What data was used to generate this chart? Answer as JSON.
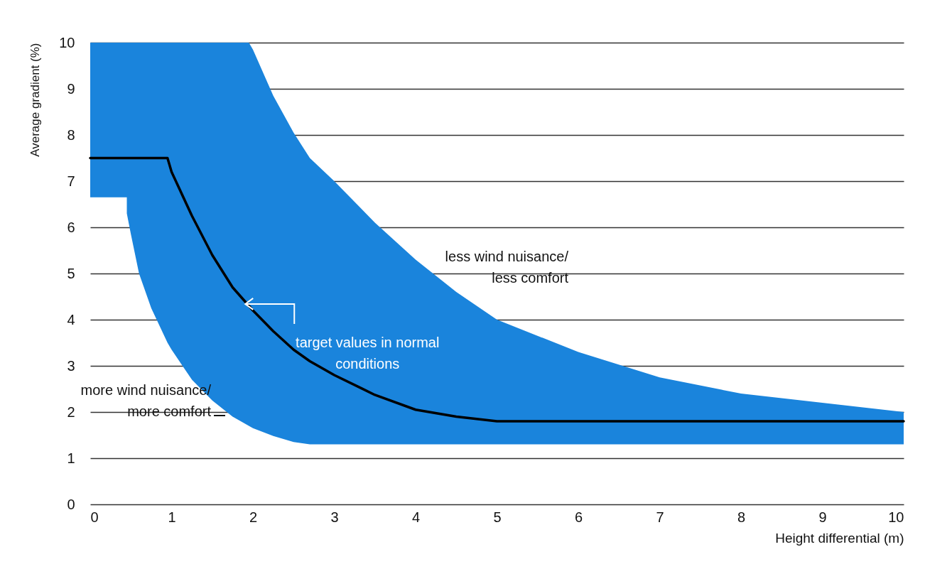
{
  "chart_data": {
    "type": "line",
    "xlabel": "Height differential (m)",
    "ylabel": "Average gradient (%)",
    "x": [
      0,
      0.45,
      0.45,
      0.5,
      0.6,
      0.75,
      0.95,
      1,
      1.25,
      1.5,
      1.75,
      1.95,
      2,
      2.25,
      2.5,
      2.7,
      3,
      3.5,
      4,
      4.5,
      5,
      6,
      7,
      8,
      9,
      10
    ],
    "series": [
      {
        "color": "#000000",
        "values": [
          7.5,
          7.5,
          7.5,
          7.5,
          7.5,
          7.5,
          7.5,
          7.2,
          6.25,
          5.4,
          4.7,
          4.3,
          4.2,
          3.75,
          3.35,
          3.1,
          2.8,
          2.37,
          2.05,
          1.9,
          1.8,
          1.8,
          1.8,
          1.8,
          1.8,
          1.8
        ],
        "lower": [
          6.65,
          6.65,
          6.3,
          5.85,
          5.0,
          4.25,
          3.5,
          3.35,
          2.7,
          2.25,
          1.9,
          1.7,
          1.65,
          1.48,
          1.35,
          1.3,
          1.3,
          1.3,
          1.3,
          1.3,
          1.3,
          1.3,
          1.3,
          1.3,
          1.3,
          1.3
        ],
        "upper": [
          10,
          10,
          10,
          10,
          10,
          10,
          10,
          10,
          10,
          10,
          10,
          10,
          9.85,
          8.85,
          8.05,
          7.5,
          7.0,
          6.1,
          5.3,
          4.6,
          4.0,
          3.3,
          2.75,
          2.4,
          2.2,
          2.0
        ]
      }
    ],
    "xlim": [
      0,
      10
    ],
    "xticks": [
      0,
      1,
      2,
      3,
      4,
      5,
      6,
      7,
      8,
      9,
      10
    ],
    "ylim": [
      0,
      10
    ],
    "yticks": [
      0,
      1,
      2,
      3,
      4,
      5,
      6,
      7,
      8,
      9,
      10
    ],
    "grid": "y",
    "annotations": [
      "less wind nuisance/ less comfort",
      {
        "text": "target values in normal conditions",
        "x": 1.88,
        "y": 4.34
      },
      "more wind nuisance/ more comfort"
    ]
  }
}
